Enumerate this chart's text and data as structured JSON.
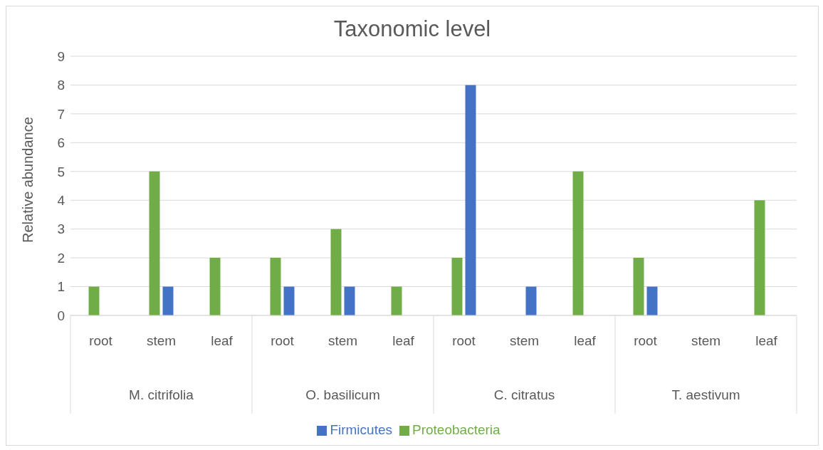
{
  "chart_data": {
    "type": "bar",
    "title": "Taxonomic level",
    "ylabel": "Relative abundance",
    "categories": [
      "root",
      "stem",
      "leaf",
      "root",
      "stem",
      "leaf",
      "root",
      "stem",
      "leaf",
      "root",
      "stem",
      "leaf"
    ],
    "annotations": [
      "M. citrifolia",
      "O. basilicum",
      "C. citratus",
      "T. aestivum"
    ],
    "series": [
      {
        "name": "Proteobacteria",
        "color": "#70ad47",
        "values": [
          1,
          5,
          2,
          2,
          3,
          1,
          2,
          0,
          5,
          2,
          0,
          4
        ]
      },
      {
        "name": "Firmicutes",
        "color": "#4472c4",
        "values": [
          0,
          1,
          0,
          1,
          1,
          0,
          8,
          1,
          0,
          1,
          0,
          0
        ]
      }
    ],
    "ylim": [
      0,
      9
    ],
    "yticks": [
      0,
      1,
      2,
      3,
      4,
      5,
      6,
      7,
      8,
      9
    ],
    "grid": "y",
    "legend": "bottom"
  }
}
